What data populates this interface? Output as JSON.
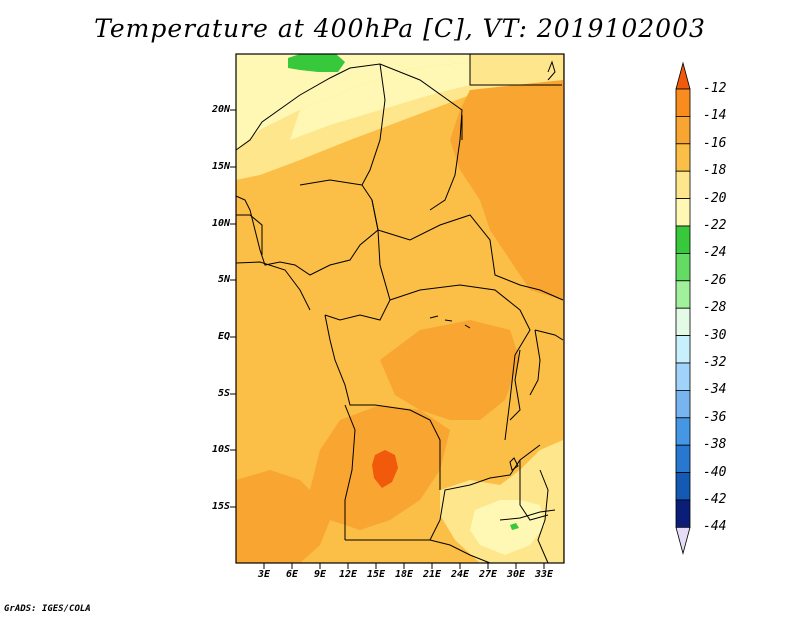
{
  "title": "Temperature at 400hPa [C], VT: 2019102003",
  "credit": "GrADS: IGES/COLA",
  "y_axis_labels": [
    "20N",
    "15N",
    "10N",
    "5N",
    "EQ",
    "5S",
    "10S",
    "15S"
  ],
  "x_axis_labels": [
    "3E",
    "6E",
    "9E",
    "12E",
    "15E",
    "18E",
    "21E",
    "24E",
    "27E",
    "30E",
    "33E"
  ],
  "colorbar": {
    "labels": [
      "-12",
      "-14",
      "-16",
      "-18",
      "-20",
      "-22",
      "-24",
      "-26",
      "-28",
      "-30",
      "-32",
      "-34",
      "-36",
      "-38",
      "-40",
      "-42",
      "-44"
    ],
    "colors": [
      "#f05a0a",
      "#f88c1e",
      "#f8a532",
      "#fbbe46",
      "#fee68c",
      "#fff8b4",
      "#37c83c",
      "#64dc64",
      "#a0f09c",
      "#e2fae6",
      "#c8f0fc",
      "#a0d2fa",
      "#78b4f0",
      "#4696e6",
      "#2878d2",
      "#145ab4",
      "#0a1e78",
      "#e6dcf8"
    ]
  }
}
